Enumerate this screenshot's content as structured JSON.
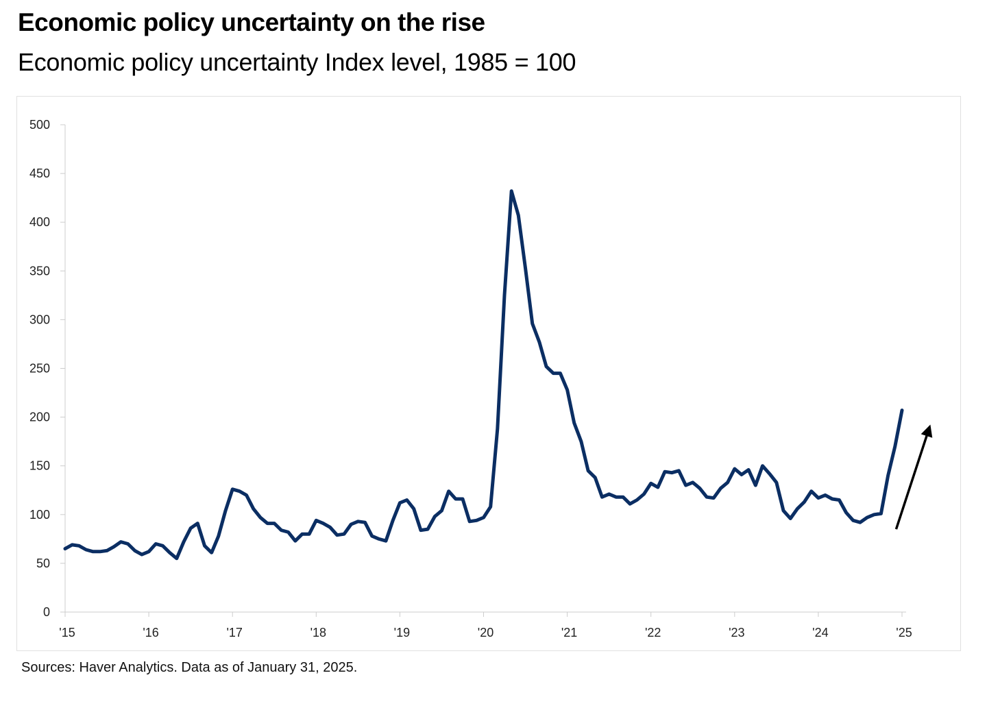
{
  "title": "Economic policy uncertainty on the rise",
  "subtitle": "Economic policy uncertainty Index level, 1985 = 100",
  "source": "Sources: Haver Analytics. Data as of January 31, 2025.",
  "colors": {
    "line": "#0b2e63",
    "arrow": "#000000",
    "axis": "#cccccc"
  },
  "chart_data": {
    "type": "line",
    "title": "Economic policy uncertainty on the rise",
    "subtitle": "Economic policy uncertainty Index level, 1985 = 100",
    "xlabel": "",
    "ylabel": "",
    "ylim": [
      0,
      500
    ],
    "yticks": [
      0,
      50,
      100,
      150,
      200,
      250,
      300,
      350,
      400,
      450,
      500
    ],
    "ytick_labels": [
      "0",
      "50",
      "100",
      "150",
      "200",
      "250",
      "300",
      "350",
      "400",
      "450",
      "500"
    ],
    "xlim": [
      2015.0,
      2025.0
    ],
    "xticks": [
      2015,
      2016,
      2017,
      2018,
      2019,
      2020,
      2021,
      2022,
      2023,
      2024,
      2025
    ],
    "xtick_labels": [
      "'15",
      "'16",
      "'17",
      "'18",
      "'19",
      "'20",
      "'21",
      "'22",
      "'23",
      "'24",
      "'25"
    ],
    "grid": false,
    "legend": "none",
    "series": [
      {
        "name": "Economic policy uncertainty index",
        "x_start": 2015.0,
        "x_step": 0.08333,
        "values": [
          65,
          69,
          68,
          64,
          62,
          62,
          63,
          67,
          72,
          70,
          63,
          59,
          62,
          70,
          68,
          61,
          55,
          72,
          86,
          91,
          68,
          61,
          78,
          104,
          126,
          124,
          120,
          106,
          97,
          91,
          91,
          84,
          82,
          73,
          80,
          80,
          94,
          91,
          87,
          79,
          80,
          90,
          93,
          92,
          78,
          75,
          73,
          94,
          112,
          115,
          106,
          84,
          85,
          98,
          104,
          124,
          116,
          116,
          93,
          94,
          97,
          108,
          188,
          325,
          432,
          407,
          353,
          296,
          277,
          252,
          245,
          245,
          228,
          194,
          175,
          145,
          138,
          118,
          121,
          118,
          118,
          111,
          115,
          121,
          132,
          128,
          144,
          143,
          145,
          130,
          133,
          127,
          118,
          117,
          127,
          133,
          147,
          141,
          146,
          130,
          150,
          142,
          133,
          104,
          96,
          106,
          113,
          124,
          117,
          120,
          116,
          115,
          102,
          94,
          92,
          97,
          100,
          101,
          140,
          170,
          207
        ]
      }
    ],
    "annotations": [
      {
        "type": "arrow",
        "description": "upward trend arrow",
        "from": [
          2024.93,
          85
        ],
        "to": [
          2025.33,
          190
        ]
      }
    ]
  }
}
